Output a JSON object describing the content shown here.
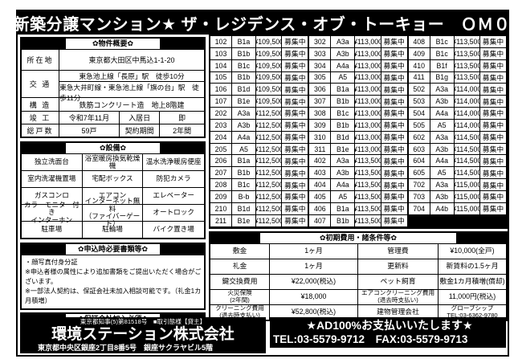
{
  "title": "★新築分譲マンション★ ザ・レジデンス・オブ・トーキョー　ＯＭ０６",
  "overview": {
    "header": "✿物件概要✿",
    "location_label": "所在地",
    "location": "東京都大田区中馬込1-1-20",
    "transport_label": "交 通",
    "transport1": "東急池上線「長原」駅　徒歩10分",
    "transport2": "東急大井町線・東急池上線「旗の台」駅　徒歩11分",
    "structure_label": "構 造",
    "structure": "鉄筋コンクリート造　地上8階建",
    "completion_label": "竣 工",
    "completion": "令和7年11月",
    "movein_label": "入居日",
    "movein": "即",
    "total_label": "総戸数",
    "total": "59戸",
    "contract_label": "契約期間",
    "contract": "2年間"
  },
  "facilities": {
    "header": "✿設備✿",
    "items": [
      "独立洗面台",
      "浴室暖房換気乾燥機",
      "温水洗浄暖房便座",
      "室内洗濯機置場",
      "宅配ボックス",
      "防犯カメラ",
      "ガスコンロ",
      "エアコン",
      "エレベーター",
      "カラーモニター付き\nインターホン",
      "インターネット無料\n（ファイバーゲート）",
      "オートロック",
      "駐車場",
      "駐輪場",
      "バイク置き場"
    ]
  },
  "application": {
    "header": "✿申込時必要書類等✿",
    "lines": [
      "・顔写真付身分証",
      "※申込者様の属性により追加書類をご提出いただく場合がございます。",
      "※一部法人契約は、保証会社未加入相談可能です。（礼金1カ月積増）"
    ]
  },
  "guarantor": {
    "header": "✿保証会社加入必須✿",
    "fee": "【賃料+管理費】の50%",
    "renewal_label": "更新\n保証料",
    "renewal_fee": "¥10,000/1年毎"
  },
  "units": {
    "status": "募集中",
    "groups": [
      [
        [
          "102",
          "B1a",
          "¥109,500"
        ],
        [
          "103",
          "B1b",
          "¥109,500"
        ],
        [
          "104",
          "B1c",
          "¥109,500"
        ],
        [
          "105",
          "B1b",
          "¥109,500"
        ],
        [
          "106",
          "B1d",
          "¥109,500"
        ],
        [
          "107",
          "B1e",
          "¥109,500"
        ],
        [
          "202",
          "A3a",
          "¥112,500"
        ],
        [
          "203",
          "A3b",
          "¥112,500"
        ],
        [
          "204",
          "A4a",
          "¥112,500"
        ],
        [
          "205",
          "A5",
          "¥112,500"
        ],
        [
          "206",
          "B1a",
          "¥112,500"
        ],
        [
          "207",
          "B1b",
          "¥112,500"
        ],
        [
          "208",
          "B1c",
          "¥112,500"
        ],
        [
          "209",
          "B-b",
          "¥112,500"
        ],
        [
          "210",
          "B1d",
          "¥112,500"
        ],
        [
          "211",
          "B1e",
          "¥112,500"
        ]
      ],
      [
        [
          "302",
          "A3a",
          "¥113,000"
        ],
        [
          "303",
          "A3b",
          "¥113,000"
        ],
        [
          "304",
          "A4a",
          "¥113,000"
        ],
        [
          "305",
          "A5",
          "¥113,000"
        ],
        [
          "306",
          "B1a",
          "¥113,000"
        ],
        [
          "307",
          "B1b",
          "¥113,000"
        ],
        [
          "308",
          "B1c",
          "¥113,000"
        ],
        [
          "309",
          "B1b",
          "¥113,000"
        ],
        [
          "310",
          "B1d",
          "¥113,000"
        ],
        [
          "311",
          "B1e",
          "¥113,000"
        ],
        [
          "402",
          "A3a",
          "¥113,500"
        ],
        [
          "403",
          "A3b",
          "¥113,500"
        ],
        [
          "404",
          "A4a",
          "¥113,500"
        ],
        [
          "405",
          "A5",
          "¥113,500"
        ],
        [
          "406",
          "B1a",
          "¥113,500"
        ],
        [
          "407",
          "B1b",
          "¥113,500"
        ]
      ],
      [
        [
          "408",
          "B1c",
          "¥113,500"
        ],
        [
          "409",
          "B1c",
          "¥113,500"
        ],
        [
          "410",
          "B1f",
          "¥113,500"
        ],
        [
          "411",
          "B1g",
          "¥113,500"
        ],
        [
          "502",
          "A3a",
          "¥114,000"
        ],
        [
          "503",
          "A3b",
          "¥114,000"
        ],
        [
          "504",
          "A4a",
          "¥114,000"
        ],
        [
          "505",
          "A5",
          "¥114,000"
        ],
        [
          "602",
          "A3a",
          "¥114,500"
        ],
        [
          "603",
          "A3b",
          "¥114,500"
        ],
        [
          "604",
          "A4a",
          "¥114,500"
        ],
        [
          "605",
          "A5",
          "¥114,500"
        ],
        [
          "702",
          "A3a",
          "¥115,000"
        ],
        [
          "703",
          "A3b",
          "¥115,000"
        ],
        [
          "704",
          "A4b",
          "¥115,000"
        ]
      ]
    ]
  },
  "initial_costs": {
    "header": "✿初期費用・諸条件等✿",
    "rows": [
      [
        "敷金",
        "1ヶ月",
        "管理費",
        "¥10,000(全戸)"
      ],
      [
        "礼金",
        "1ヶ月",
        "更新料",
        "新賃料の1.5ヶ月"
      ],
      [
        "鍵交換費用",
        "¥22,000(税込)",
        "ペット飼育",
        "敷金1カ月積増(償却)"
      ],
      [
        "火災保険\n(2年間)",
        "¥18,000",
        "エアコンクリーニング費用\n(退去時支払い)",
        "11,000円(税込)"
      ],
      [
        "クリーニング費用\n(退去時支払い)",
        "¥52,800(税込)",
        "建物管理会社",
        "グローブシップ\nTEL:03-6362-9780"
      ]
    ]
  },
  "footer": {
    "license": "東京都知事(5)第81518号　■取引態様【貸主】",
    "company": "環境ステーション株式会社",
    "address": "東京都中央区銀座2丁目8番5号　銀座サクラヤビル5階",
    "ad": "★AD100%お支払いいたします★",
    "tel_fax": "TEL:03-5579-9712　FAX:03-5579-9713"
  }
}
